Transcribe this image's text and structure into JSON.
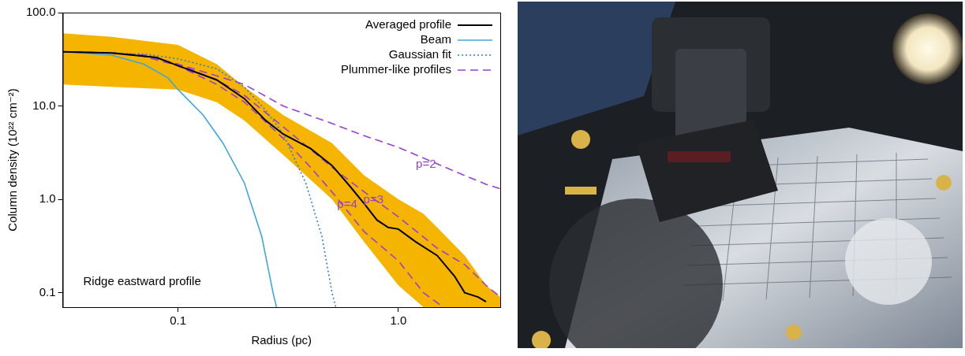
{
  "chart_data": {
    "type": "line",
    "log": true,
    "grid": false,
    "legend": "upper right",
    "xlabel": "Radius (pc)",
    "ylabel": "Column density (10²² cm⁻²)",
    "annotations": [
      "Ridge eastward profile"
    ],
    "xlim": [
      0.03,
      2.9
    ],
    "ylim": [
      0.07,
      100
    ],
    "xticks": [
      0.1,
      {
        "value": 1,
        "label": "1.0"
      }
    ],
    "yticks": [
      0.1,
      {
        "value": 1,
        "label": "1.0"
      },
      {
        "value": 10,
        "label": "10.0"
      },
      {
        "value": 100,
        "label": "100.0"
      }
    ],
    "band": {
      "color": "#f5b400",
      "x": [
        0.03,
        0.05,
        0.07,
        0.1,
        0.15,
        0.2,
        0.3,
        0.5,
        0.7,
        1.0,
        1.3,
        1.5,
        2.0,
        2.5,
        2.9
      ],
      "lower": [
        17,
        16,
        15.5,
        15,
        11,
        7,
        3,
        1,
        0.35,
        0.12,
        0.07,
        0.07,
        0.07,
        0.07,
        0.07
      ],
      "upper": [
        60,
        55,
        50,
        45,
        28,
        16,
        8,
        4,
        1.8,
        1.0,
        0.7,
        0.5,
        0.25,
        0.12,
        0.09
      ]
    },
    "series": [
      {
        "name": "Averaged profile",
        "color": "#000000",
        "line_style": "solid",
        "x": [
          0.03,
          0.05,
          0.08,
          0.1,
          0.15,
          0.2,
          0.25,
          0.3,
          0.4,
          0.5,
          0.6,
          0.7,
          0.8,
          0.9,
          1.0,
          1.2,
          1.5,
          1.8,
          2.0,
          2.3,
          2.5
        ],
        "values": [
          38,
          37,
          33,
          27,
          19,
          12,
          7,
          5,
          3.5,
          2.3,
          1.4,
          0.9,
          0.6,
          0.5,
          0.48,
          0.35,
          0.25,
          0.15,
          0.1,
          0.09,
          0.08
        ]
      },
      {
        "name": "Beam",
        "color": "#3ea6e0",
        "line_style": "solid",
        "x": [
          0.03,
          0.05,
          0.07,
          0.09,
          0.1,
          0.13,
          0.16,
          0.2,
          0.24,
          0.27,
          0.28
        ],
        "values": [
          38,
          35,
          28,
          20,
          15,
          8,
          4,
          1.5,
          0.4,
          0.1,
          0.07
        ]
      },
      {
        "name": "Gaussian fit",
        "color": "#2f7fd0",
        "line_style": "dotted",
        "x": [
          0.03,
          0.07,
          0.1,
          0.15,
          0.2,
          0.25,
          0.3,
          0.38,
          0.45,
          0.5,
          0.52
        ],
        "values": [
          38,
          36,
          32,
          25,
          16,
          9,
          5,
          1.5,
          0.4,
          0.1,
          0.07
        ]
      },
      {
        "name": "Plummer-like profiles",
        "color": "#9b3fd1",
        "line_style": "dashed",
        "curves": [
          {
            "label": "p=2",
            "x": [
              0.03,
              0.05,
              0.07,
              0.1,
              0.15,
              0.2,
              0.3,
              0.5,
              0.7,
              1.0,
              1.5,
              2.0,
              2.5,
              2.9
            ],
            "values": [
              38,
              37,
              35,
              28,
              21,
              17,
              10,
              6.5,
              4.8,
              3.6,
              2.4,
              1.8,
              1.45,
              1.3
            ]
          },
          {
            "label": "p=3",
            "x": [
              0.03,
              0.05,
              0.07,
              0.1,
              0.15,
              0.2,
              0.3,
              0.5,
              0.7,
              1.0,
              1.5,
              2.0,
              2.5,
              2.9
            ],
            "values": [
              38,
              37,
              35,
              28,
              19,
              13,
              6,
              2.2,
              1.2,
              0.65,
              0.3,
              0.2,
              0.12,
              0.09
            ]
          },
          {
            "label": "p=4",
            "x": [
              0.03,
              0.05,
              0.07,
              0.1,
              0.15,
              0.2,
              0.3,
              0.4,
              0.5,
              0.7,
              1.0,
              1.3,
              1.6
            ],
            "values": [
              38,
              37,
              34,
              27,
              17,
              11,
              4.5,
              2.2,
              1.2,
              0.45,
              0.22,
              0.1,
              0.07
            ]
          }
        ]
      }
    ]
  }
}
